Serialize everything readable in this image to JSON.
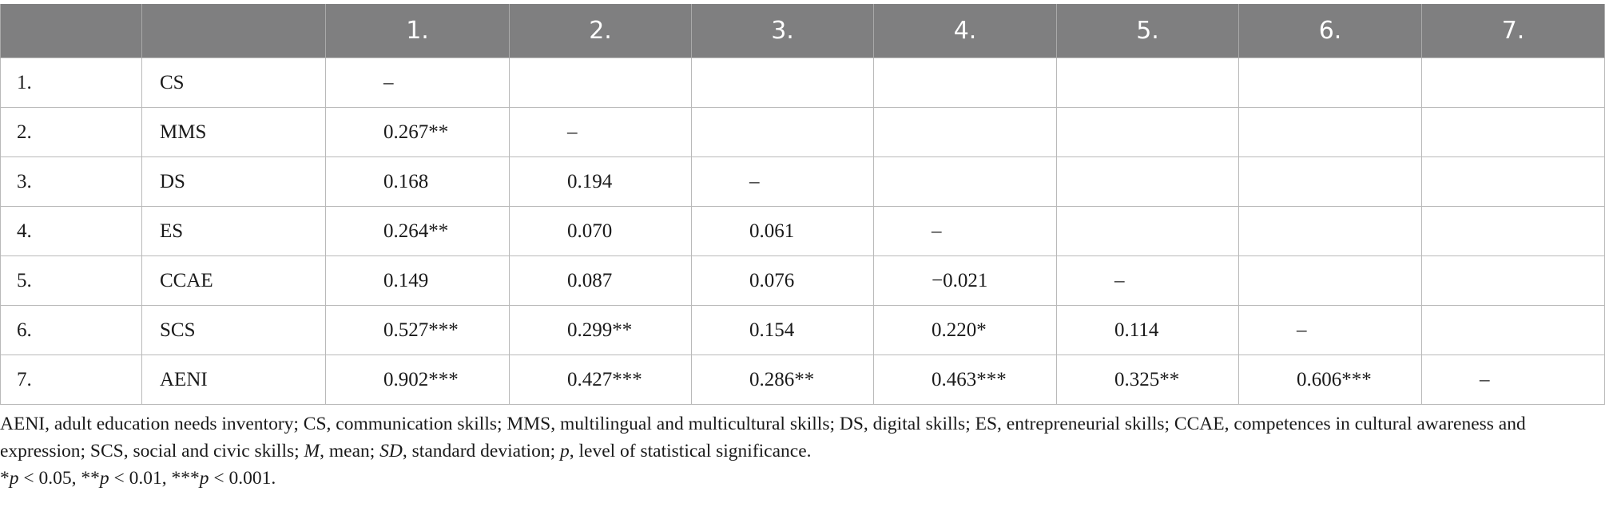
{
  "table": {
    "columns": [
      "1.",
      "2.",
      "3.",
      "4.",
      "5.",
      "6.",
      "7."
    ],
    "rows": [
      {
        "num": "1.",
        "label": "CS",
        "cells": [
          "–"
        ]
      },
      {
        "num": "2.",
        "label": "MMS",
        "cells": [
          "0.267**",
          "–"
        ]
      },
      {
        "num": "3.",
        "label": "DS",
        "cells": [
          "0.168",
          "0.194",
          "–"
        ]
      },
      {
        "num": "4.",
        "label": "ES",
        "cells": [
          "0.264**",
          "0.070",
          "0.061",
          "–"
        ]
      },
      {
        "num": "5.",
        "label": "CCAE",
        "cells": [
          "0.149",
          "0.087",
          "0.076",
          "−0.021",
          "–"
        ]
      },
      {
        "num": "6.",
        "label": "SCS",
        "cells": [
          "0.527***",
          "0.299**",
          "0.154",
          "0.220*",
          "0.114",
          "–"
        ]
      },
      {
        "num": "7.",
        "label": "AENI",
        "cells": [
          "0.902***",
          "0.427***",
          "0.286**",
          "0.463***",
          "0.325**",
          "0.606***",
          "–"
        ]
      }
    ]
  },
  "notes": [
    [
      {
        "text": "AENI, adult education needs inventory; CS, communication skills; MMS, multilingual and multicultural skills; DS, digital skills; ES, entrepreneurial skills; CCAE, competences in cultural awareness and expression; SCS, social and civic skills; ",
        "italic": false
      },
      {
        "text": "M",
        "italic": true
      },
      {
        "text": ", mean; ",
        "italic": false
      },
      {
        "text": "SD",
        "italic": true
      },
      {
        "text": ", standard deviation; ",
        "italic": false
      },
      {
        "text": "p",
        "italic": true
      },
      {
        "text": ", level of statistical significance.",
        "italic": false
      }
    ],
    [
      {
        "text": "*",
        "italic": false
      },
      {
        "text": "p",
        "italic": true
      },
      {
        "text": " < 0.05, **",
        "italic": false
      },
      {
        "text": "p",
        "italic": true
      },
      {
        "text": " < 0.01, ***",
        "italic": false
      },
      {
        "text": "p",
        "italic": true
      },
      {
        "text": " < 0.001.",
        "italic": false
      }
    ]
  ]
}
